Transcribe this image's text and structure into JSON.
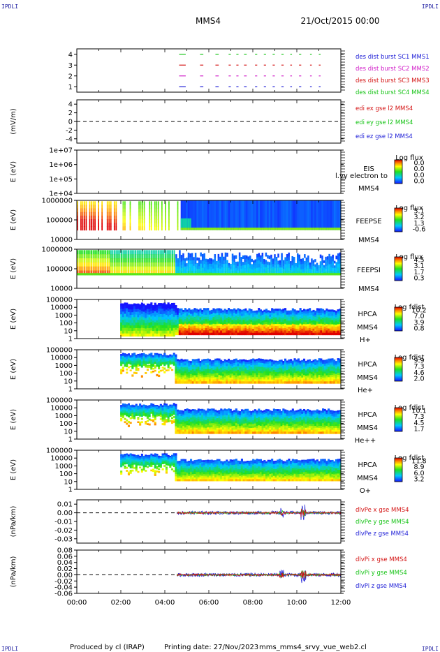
{
  "header": {
    "corner_left_top": "IPDLI",
    "corner_right_top": "IPDLI",
    "corner_left_bottom": "IPDLI",
    "corner_right_bottom": "IPDLI",
    "spacecraft": "MMS4",
    "datetime": "21/Oct/2015 00:00"
  },
  "footer": {
    "produced_by": "Produced by cl (IRAP)",
    "printing_date": "Printing date: 27/Nov/2023",
    "filename": "mms_mms4_srvy_vue_web2.cl"
  },
  "time_axis": {
    "ticks": [
      "00:00",
      "02:00",
      "04:00",
      "06:00",
      "08:00",
      "10:00",
      "12:00"
    ],
    "range_hours": [
      0,
      12
    ]
  },
  "chart_data": [
    {
      "id": "burst",
      "type": "scatter",
      "ylabel": "",
      "ylim": [
        0.5,
        4.5
      ],
      "yticks": [
        "4",
        "3",
        "2",
        "1"
      ],
      "yvalues": [
        4,
        3,
        2,
        1
      ],
      "series": [
        {
          "name": "des dist burst SC1 MMS1",
          "color": "#1c1cd6",
          "y": 1
        },
        {
          "name": "des dist burst SC2 MMS2",
          "color": "#d11cc8",
          "y": 2
        },
        {
          "name": "des dist burst SC3 MMS3",
          "color": "#d41414",
          "y": 3
        },
        {
          "name": "des dist burst SC4 MMS4",
          "color": "#18c418",
          "y": 4
        }
      ],
      "intervals_hours": [
        [
          4.65,
          4.95
        ],
        [
          5.6,
          5.75
        ],
        [
          6.3,
          6.45
        ],
        [
          6.9,
          7.0
        ],
        [
          7.25,
          7.35
        ],
        [
          7.6,
          7.72
        ],
        [
          8.1,
          8.2
        ],
        [
          8.5,
          8.6
        ],
        [
          8.9,
          9.0
        ],
        [
          9.3,
          9.4
        ],
        [
          9.7,
          9.78
        ],
        [
          10.1,
          10.2
        ],
        [
          10.6,
          10.68
        ],
        [
          11.0,
          11.08
        ]
      ]
    },
    {
      "id": "edi",
      "type": "line",
      "ylabel": "(mV/m)",
      "ylim": [
        -5,
        5
      ],
      "yticks": [
        "4",
        "2",
        "0",
        "-2",
        "-4"
      ],
      "yvalues": [
        4,
        2,
        0,
        -2,
        -4
      ],
      "series": [
        {
          "name": "edi ex gse l2 MMS4",
          "color": "#d41414"
        },
        {
          "name": "edi ey gse l2 MMS4",
          "color": "#18c418"
        },
        {
          "name": "edi ez gse l2 MMS4",
          "color": "#1c1cd6"
        }
      ],
      "reference_line": 0
    },
    {
      "id": "eis",
      "type": "heatmap",
      "ylabel": "E (eV)",
      "yscale": "log",
      "ylim": [
        10000,
        10000000
      ],
      "yticks": [
        "1e+07",
        "1e+06",
        "1e+05",
        "1e+04"
      ],
      "right_labels": [
        "EIS",
        "MMS4"
      ],
      "overlay_text": "l.vy electron to",
      "colorbar": {
        "title": "Log flux",
        "values": [
          "0.0",
          "0.0",
          "0.0",
          "0.0"
        ]
      }
    },
    {
      "id": "feepse",
      "type": "heatmap",
      "ylabel": "E (eV)",
      "yscale": "log",
      "ylim": [
        10000,
        1000000
      ],
      "yticks": [
        "1000000",
        "100000",
        "10000"
      ],
      "right_labels": [
        "FEEPSE",
        "MMS4"
      ],
      "colorbar": {
        "title": "Log flux",
        "values": [
          "5.1",
          "3.2",
          "1.3",
          "-0.6"
        ]
      }
    },
    {
      "id": "feepsi",
      "type": "heatmap",
      "ylabel": "E (eV)",
      "yscale": "log",
      "ylim": [
        10000,
        1000000
      ],
      "yticks": [
        "1000000",
        "100000",
        "10000"
      ],
      "right_labels": [
        "FEEPSI",
        "MMS4"
      ],
      "colorbar": {
        "title": "Log flux",
        "values": [
          "4.5",
          "3.1",
          "1.7",
          "0.3"
        ]
      }
    },
    {
      "id": "hpca_h",
      "type": "heatmap",
      "ylabel": "E (eV)",
      "yscale": "log",
      "ylim": [
        1,
        100000
      ],
      "yticks": [
        "100000",
        "10000",
        "1000",
        "100",
        "10",
        "1"
      ],
      "right_labels": [
        "HPCA",
        "MMS4",
        "H+"
      ],
      "colorbar": {
        "title": "Log fdist",
        "values": [
          "10.2",
          "7.0",
          "3.9",
          "0.8"
        ]
      }
    },
    {
      "id": "hpca_he",
      "type": "heatmap",
      "ylabel": "E (eV)",
      "yscale": "log",
      "ylim": [
        1,
        100000
      ],
      "yticks": [
        "100000",
        "10000",
        "1000",
        "100",
        "10",
        "1"
      ],
      "right_labels": [
        "HPCA",
        "MMS4",
        "He+"
      ],
      "colorbar": {
        "title": "Log fdist",
        "values": [
          "9.9",
          "7.3",
          "4.6",
          "2.0"
        ]
      }
    },
    {
      "id": "hpca_hepp",
      "type": "heatmap",
      "ylabel": "E (eV)",
      "yscale": "log",
      "ylim": [
        1,
        100000
      ],
      "yticks": [
        "100000",
        "10000",
        "1000",
        "100",
        "10",
        "1"
      ],
      "right_labels": [
        "HPCA",
        "MMS4",
        "He++"
      ],
      "colorbar": {
        "title": "Log fdist",
        "values": [
          "10.1",
          "7.3",
          "4.5",
          "1.7"
        ]
      }
    },
    {
      "id": "hpca_o",
      "type": "heatmap",
      "ylabel": "E (eV)",
      "yscale": "log",
      "ylim": [
        1,
        100000
      ],
      "yticks": [
        "100000",
        "10000",
        "1000",
        "100",
        "10",
        "1"
      ],
      "right_labels": [
        "HPCA",
        "MMS4",
        "O+"
      ],
      "colorbar": {
        "title": "Log fdist",
        "values": [
          "11.8",
          "8.9",
          "6.0",
          "3.2"
        ]
      }
    },
    {
      "id": "divpe",
      "type": "line",
      "ylabel": "(nPa/km)",
      "ylim": [
        -0.035,
        0.015
      ],
      "yticks": [
        "0.01",
        "0.00",
        "-0.01",
        "-0.02",
        "-0.03"
      ],
      "yvalues": [
        0.01,
        0,
        -0.01,
        -0.02,
        -0.03
      ],
      "series": [
        {
          "name": "dlvPe x gse MMS4",
          "color": "#d41414"
        },
        {
          "name": "dlvPe y gse MMS4",
          "color": "#18c418"
        },
        {
          "name": "dlvPe z gse MMS4",
          "color": "#1c1cd6"
        }
      ],
      "reference_line": 0
    },
    {
      "id": "divpi",
      "type": "line",
      "ylabel": "(nPa/km)",
      "ylim": [
        -0.06,
        0.08
      ],
      "yticks": [
        "0.08",
        "0.06",
        "0.04",
        "0.02",
        "0.00",
        "-0.02",
        "-0.04",
        "-0.06"
      ],
      "yvalues": [
        0.08,
        0.06,
        0.04,
        0.02,
        0,
        -0.02,
        -0.04,
        -0.06
      ],
      "series": [
        {
          "name": "dlvPi x gse MMS4",
          "color": "#d41414"
        },
        {
          "name": "dlvPi y gse MMS4",
          "color": "#18c418"
        },
        {
          "name": "dlvPi z gse MMS4",
          "color": "#1c1cd6"
        }
      ],
      "reference_line": 0
    }
  ]
}
